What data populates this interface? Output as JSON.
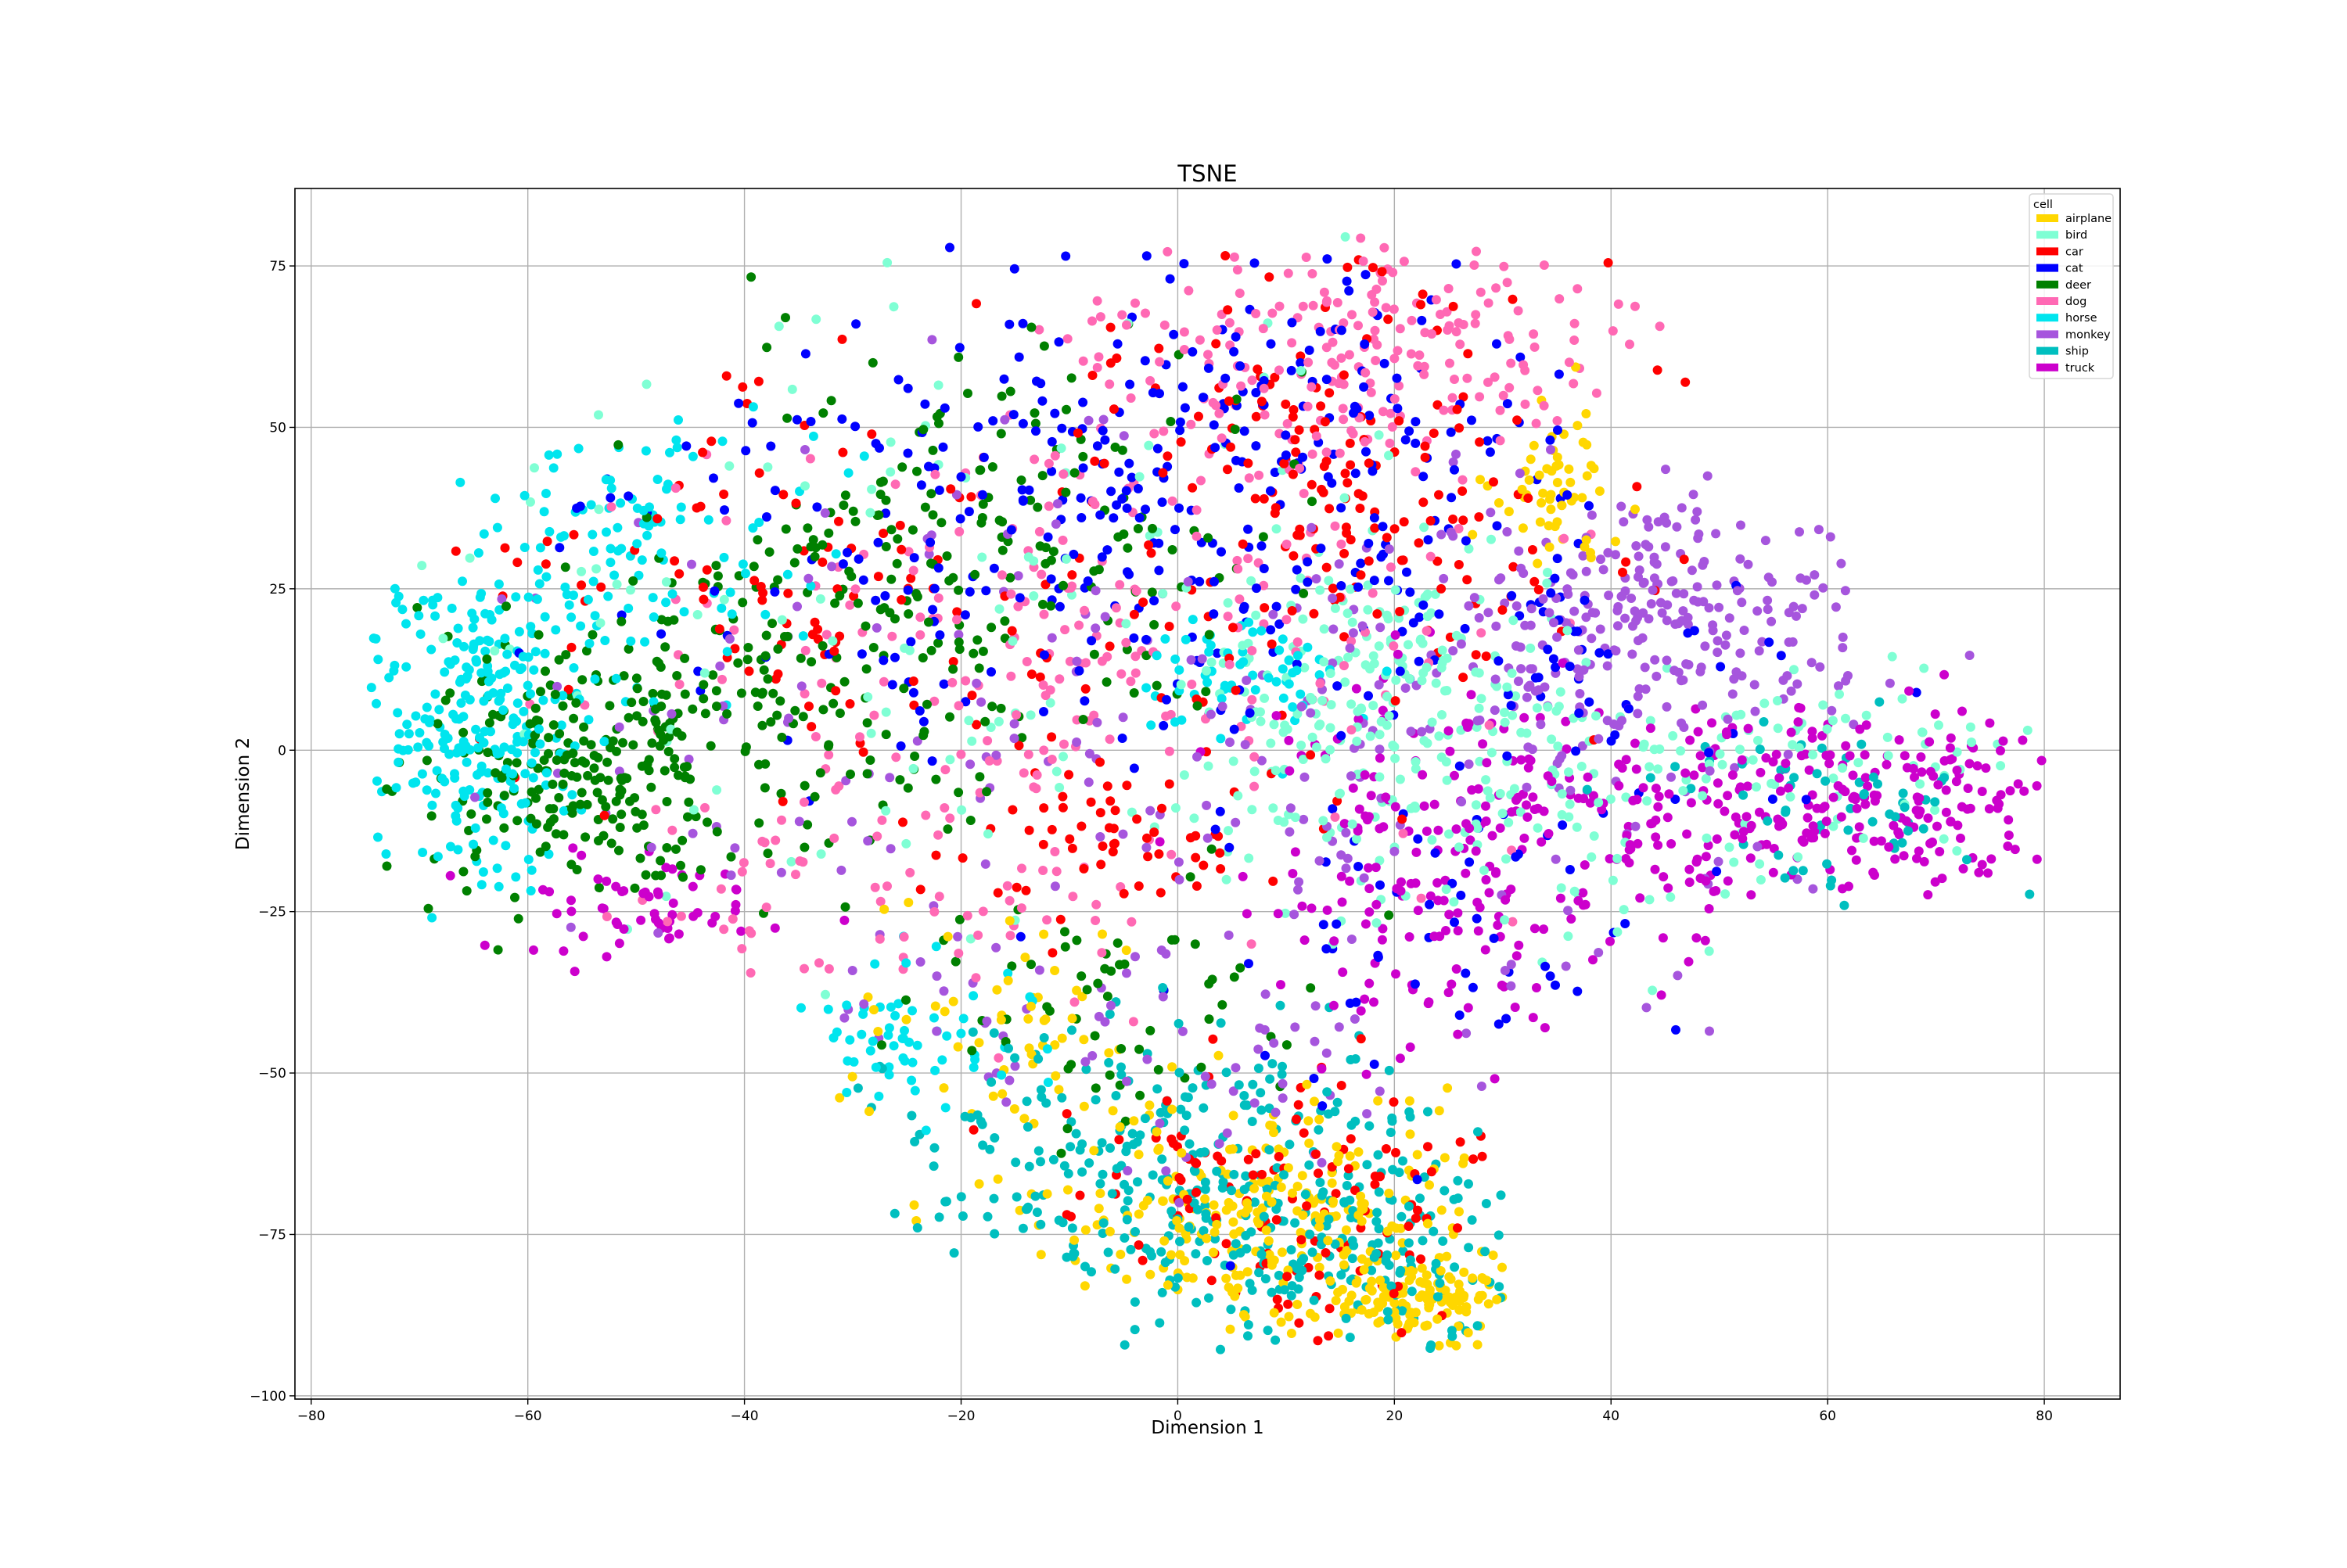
{
  "chart_data": {
    "type": "scatter",
    "title": "TSNE",
    "xlabel": "Dimension 1",
    "ylabel": "Dimension 2",
    "xlim": [
      -81.5,
      87
    ],
    "ylim": [
      -100.5,
      87
    ],
    "xticks": [
      -80,
      -60,
      -40,
      -20,
      0,
      20,
      40,
      60,
      80
    ],
    "yticks": [
      75,
      50,
      25,
      0,
      -25,
      -50,
      -75,
      -100
    ],
    "xtick_labels": [
      "−80",
      "−60",
      "−40",
      "−20",
      "0",
      "20",
      "40",
      "60",
      "80"
    ],
    "ytick_labels": [
      "75",
      "50",
      "25",
      "0",
      "−25",
      "−50",
      "−75",
      "−100"
    ],
    "grid": true,
    "legend": {
      "title": "cell",
      "position": "top-right"
    },
    "series": [
      {
        "name": "airplane",
        "color": "#ffd700",
        "regions": [
          {
            "cx": 8,
            "cy": -72,
            "sx": 11,
            "sy": 8,
            "w": 4
          },
          {
            "cx": 22,
            "cy": -85,
            "sx": 6,
            "sy": 3,
            "w": 2
          },
          {
            "cx": 35,
            "cy": 40,
            "sx": 3,
            "sy": 6,
            "w": 1
          },
          {
            "cx": -15,
            "cy": -45,
            "sx": 8,
            "sy": 10,
            "w": 1
          }
        ]
      },
      {
        "name": "bird",
        "color": "#7fffd4",
        "regions": [
          {
            "cx": 18,
            "cy": 5,
            "sx": 8,
            "sy": 12,
            "w": 3
          },
          {
            "cx": 35,
            "cy": -5,
            "sx": 12,
            "sy": 12,
            "w": 2
          },
          {
            "cx": -20,
            "cy": 20,
            "sx": 25,
            "sy": 25,
            "w": 2
          },
          {
            "cx": 60,
            "cy": 0,
            "sx": 10,
            "sy": 8,
            "w": 1
          }
        ]
      },
      {
        "name": "car",
        "color": "#ff0000",
        "regions": [
          {
            "cx": 15,
            "cy": 40,
            "sx": 12,
            "sy": 20,
            "w": 3
          },
          {
            "cx": 10,
            "cy": -68,
            "sx": 10,
            "sy": 10,
            "w": 2
          },
          {
            "cx": -30,
            "cy": 25,
            "sx": 18,
            "sy": 18,
            "w": 2
          },
          {
            "cx": -8,
            "cy": -15,
            "sx": 8,
            "sy": 8,
            "w": 1
          }
        ]
      },
      {
        "name": "cat",
        "color": "#0000ff",
        "regions": [
          {
            "cx": -10,
            "cy": 35,
            "sx": 22,
            "sy": 18,
            "w": 4
          },
          {
            "cx": 10,
            "cy": 50,
            "sx": 12,
            "sy": 15,
            "w": 2
          },
          {
            "cx": 30,
            "cy": 10,
            "sx": 12,
            "sy": 15,
            "w": 1
          },
          {
            "cx": 20,
            "cy": -30,
            "sx": 15,
            "sy": 18,
            "w": 1
          }
        ]
      },
      {
        "name": "deer",
        "color": "#008000",
        "regions": [
          {
            "cx": -55,
            "cy": -3,
            "sx": 8,
            "sy": 10,
            "w": 4
          },
          {
            "cx": -35,
            "cy": 15,
            "sx": 12,
            "sy": 18,
            "w": 3
          },
          {
            "cx": -15,
            "cy": 30,
            "sx": 12,
            "sy": 20,
            "w": 2
          },
          {
            "cx": -5,
            "cy": -40,
            "sx": 10,
            "sy": 10,
            "w": 1
          }
        ]
      },
      {
        "name": "dog",
        "color": "#ff69b4",
        "regions": [
          {
            "cx": 20,
            "cy": 62,
            "sx": 12,
            "sy": 8,
            "w": 3
          },
          {
            "cx": -15,
            "cy": 10,
            "sx": 18,
            "sy": 20,
            "w": 2
          },
          {
            "cx": 0,
            "cy": 30,
            "sx": 15,
            "sy": 20,
            "w": 2
          },
          {
            "cx": -30,
            "cy": -20,
            "sx": 12,
            "sy": 10,
            "w": 1
          }
        ]
      },
      {
        "name": "horse",
        "color": "#00e5ee",
        "regions": [
          {
            "cx": -65,
            "cy": 5,
            "sx": 5,
            "sy": 12,
            "w": 4
          },
          {
            "cx": -50,
            "cy": 30,
            "sx": 8,
            "sy": 10,
            "w": 2
          },
          {
            "cx": 5,
            "cy": 12,
            "sx": 5,
            "sy": 5,
            "w": 1
          },
          {
            "cx": -25,
            "cy": -45,
            "sx": 6,
            "sy": 6,
            "w": 1
          }
        ]
      },
      {
        "name": "monkey",
        "color": "#a655dd",
        "regions": [
          {
            "cx": 45,
            "cy": 22,
            "sx": 10,
            "sy": 10,
            "w": 4
          },
          {
            "cx": 25,
            "cy": 0,
            "sx": 15,
            "sy": 20,
            "w": 2
          },
          {
            "cx": -20,
            "cy": 0,
            "sx": 25,
            "sy": 25,
            "w": 2
          },
          {
            "cx": 0,
            "cy": -45,
            "sx": 15,
            "sy": 10,
            "w": 1
          }
        ]
      },
      {
        "name": "ship",
        "color": "#00bfbf",
        "regions": [
          {
            "cx": 0,
            "cy": -65,
            "sx": 12,
            "sy": 12,
            "w": 5
          },
          {
            "cx": 20,
            "cy": -78,
            "sx": 8,
            "sy": 7,
            "w": 2
          },
          {
            "cx": 60,
            "cy": -8,
            "sx": 8,
            "sy": 8,
            "w": 1
          }
        ]
      },
      {
        "name": "truck",
        "color": "#cc00cc",
        "regions": [
          {
            "cx": 55,
            "cy": -10,
            "sx": 15,
            "sy": 8,
            "w": 4
          },
          {
            "cx": 25,
            "cy": -20,
            "sx": 10,
            "sy": 15,
            "w": 3
          },
          {
            "cx": 70,
            "cy": -5,
            "sx": 6,
            "sy": 6,
            "w": 1
          },
          {
            "cx": -50,
            "cy": -25,
            "sx": 8,
            "sy": 5,
            "w": 1
          }
        ]
      }
    ]
  }
}
